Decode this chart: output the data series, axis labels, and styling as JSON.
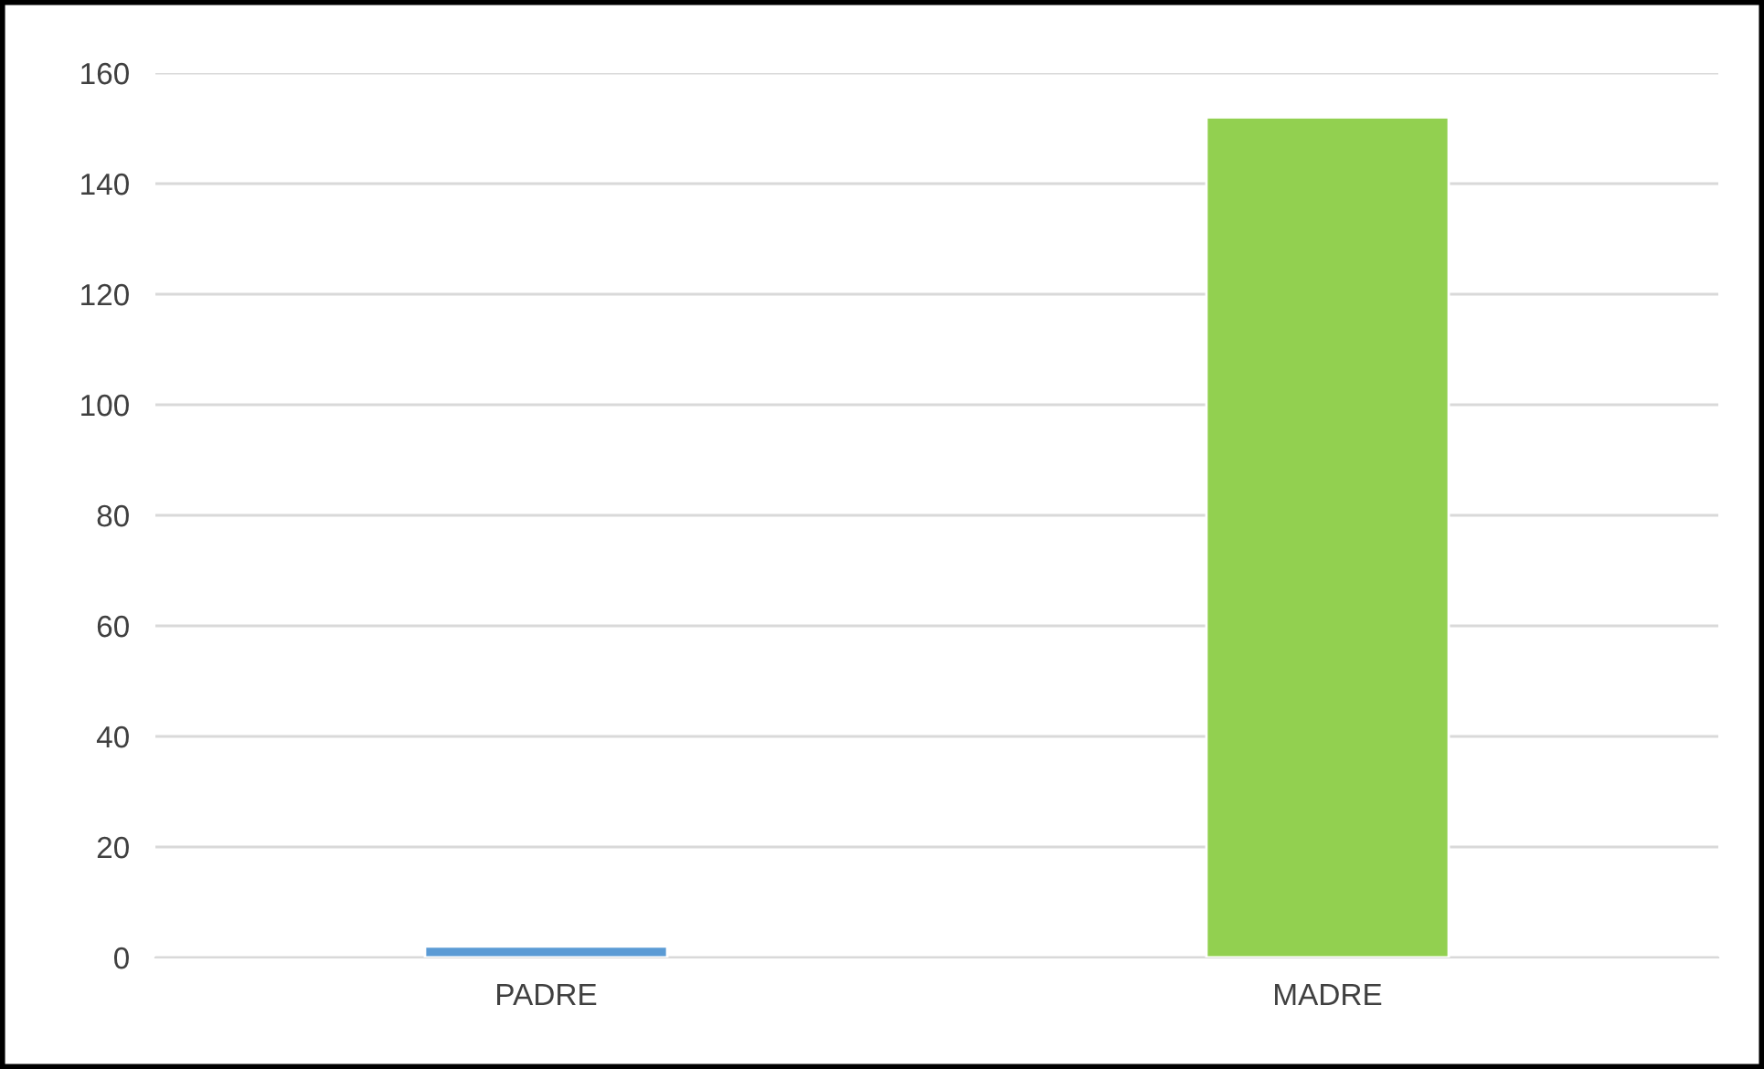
{
  "chart_data": {
    "type": "bar",
    "categories": [
      "PADRE",
      "MADRE"
    ],
    "values": [
      2,
      152
    ],
    "colors": [
      "#5b9bd5",
      "#92d050"
    ],
    "ylim": [
      0,
      160
    ],
    "yticks": [
      0,
      20,
      40,
      60,
      80,
      100,
      120,
      140,
      160
    ],
    "grid": "y"
  }
}
